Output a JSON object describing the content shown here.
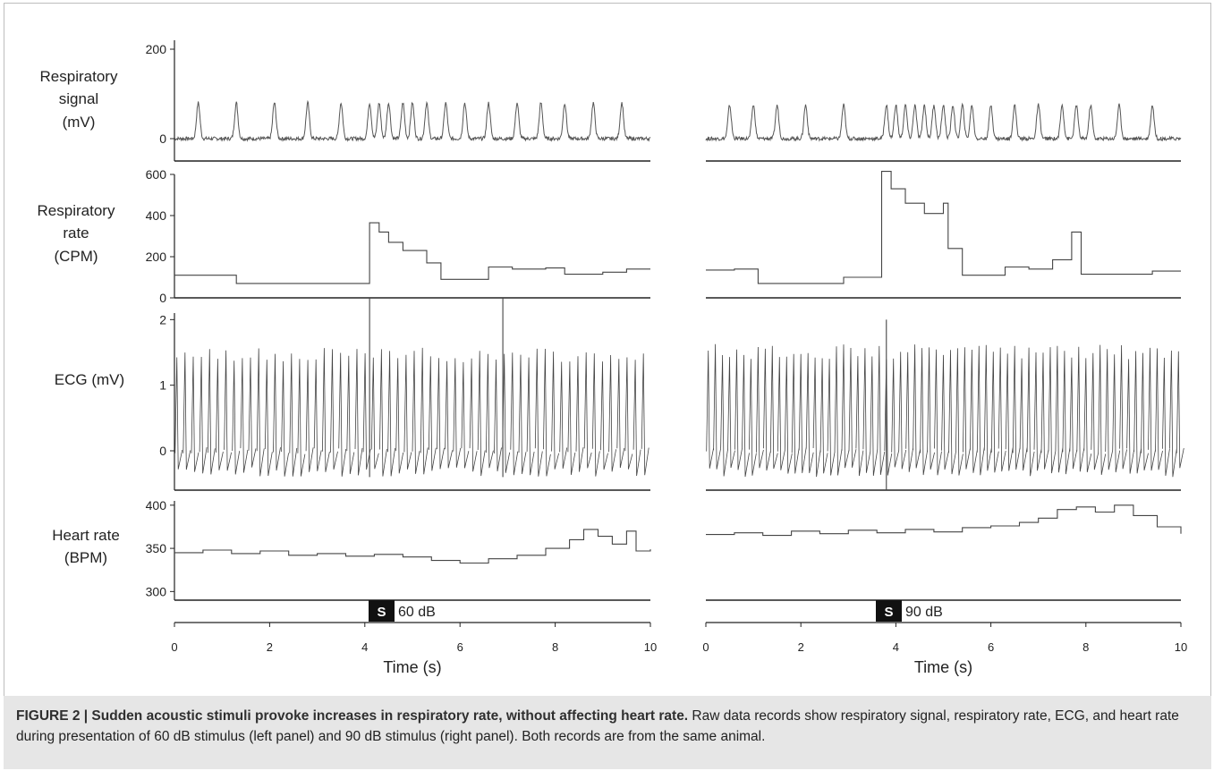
{
  "figure": {
    "caption_title": "FIGURE 2 | Sudden acoustic stimuli provoke increases in respiratory rate, without affecting heart rate.",
    "caption_body": " Raw data records show respiratory signal, respiratory rate, ECG, and heart rate during presentation of 60 dB stimulus (left panel) and 90 dB stimulus (right panel). Both records are from the same animal."
  },
  "row_labels": {
    "resp_signal": [
      "Respiratory",
      "signal",
      "(mV)"
    ],
    "resp_rate": [
      "Respiratory",
      "rate",
      "(CPM)"
    ],
    "ecg": [
      "ECG (mV)"
    ],
    "heart_rate": [
      "Heart rate",
      "(BPM)"
    ]
  },
  "stimulus": {
    "left": {
      "marker": "S",
      "label": "60 dB",
      "time_s": 4.1
    },
    "right": {
      "marker": "S",
      "label": "90 dB",
      "time_s": 3.6
    }
  },
  "chart_data": [
    {
      "type": "line",
      "panel": "left",
      "xlabel": "Time (s)",
      "xlim": [
        0,
        10
      ],
      "x_ticks": [
        "0",
        "2",
        "4",
        "6",
        "8",
        "10"
      ],
      "series": [
        {
          "name": "Respiratory signal",
          "unit": "mV",
          "ylim": [
            -50,
            220
          ],
          "y_ticks": [
            "0",
            "200"
          ],
          "breath_times": [
            0.5,
            1.3,
            2.1,
            2.8,
            3.5,
            4.1,
            4.3,
            4.5,
            4.8,
            5.0,
            5.3,
            5.7,
            6.1,
            6.6,
            7.2,
            7.7,
            8.2,
            8.8,
            9.4
          ],
          "baseline": 0,
          "peak": 80
        },
        {
          "name": "Respiratory rate",
          "unit": "CPM",
          "ylim": [
            0,
            600
          ],
          "y_ticks": [
            "0",
            "200",
            "400",
            "600"
          ],
          "steps": [
            [
              0,
              110
            ],
            [
              0.7,
              110
            ],
            [
              1.3,
              70
            ],
            [
              4.1,
              75
            ],
            [
              4.1,
              365
            ],
            [
              4.3,
              320
            ],
            [
              4.5,
              270
            ],
            [
              4.8,
              230
            ],
            [
              5.3,
              170
            ],
            [
              5.6,
              90
            ],
            [
              6.6,
              150
            ],
            [
              7.1,
              140
            ],
            [
              7.8,
              145
            ],
            [
              8.2,
              115
            ],
            [
              9.0,
              125
            ],
            [
              9.5,
              140
            ],
            [
              10,
              140
            ]
          ]
        },
        {
          "name": "ECG",
          "unit": "mV",
          "ylim": [
            -0.6,
            2.1
          ],
          "y_ticks": [
            "0",
            "1",
            "2"
          ],
          "beat_interval_s": 0.172,
          "r_peak": 1.5,
          "artifacts": [
            4.1,
            6.9
          ]
        },
        {
          "name": "Heart rate",
          "unit": "BPM",
          "ylim": [
            290,
            405
          ],
          "y_ticks": [
            "300",
            "350",
            "400"
          ],
          "steps": [
            [
              0,
              345
            ],
            [
              0.6,
              348
            ],
            [
              1.2,
              344
            ],
            [
              1.8,
              347
            ],
            [
              2.4,
              342
            ],
            [
              3.0,
              344
            ],
            [
              3.6,
              341
            ],
            [
              4.2,
              343
            ],
            [
              4.8,
              340
            ],
            [
              5.4,
              336
            ],
            [
              6.0,
              333
            ],
            [
              6.6,
              338
            ],
            [
              7.2,
              342
            ],
            [
              7.8,
              350
            ],
            [
              8.3,
              360
            ],
            [
              8.6,
              372
            ],
            [
              8.9,
              364
            ],
            [
              9.2,
              355
            ],
            [
              9.5,
              370
            ],
            [
              9.7,
              347
            ],
            [
              10,
              349
            ]
          ]
        }
      ]
    },
    {
      "type": "line",
      "panel": "right",
      "xlabel": "Time (s)",
      "xlim": [
        0,
        10
      ],
      "x_ticks": [
        "0",
        "2",
        "4",
        "6",
        "8",
        "10"
      ],
      "series": [
        {
          "name": "Respiratory signal",
          "unit": "mV",
          "ylim": [
            -50,
            220
          ],
          "y_ticks": [],
          "breath_times": [
            0.5,
            1.0,
            1.5,
            2.1,
            2.9,
            3.8,
            4.0,
            4.2,
            4.4,
            4.6,
            4.8,
            5.0,
            5.2,
            5.4,
            5.6,
            6.0,
            6.5,
            7.0,
            7.5,
            7.8,
            8.1,
            8.7,
            9.4
          ],
          "baseline": 0,
          "peak": 75
        },
        {
          "name": "Respiratory rate",
          "unit": "CPM",
          "ylim": [
            0,
            600
          ],
          "y_ticks": [],
          "steps": [
            [
              0,
              135
            ],
            [
              0.6,
              140
            ],
            [
              1.1,
              70
            ],
            [
              2.9,
              100
            ],
            [
              3.7,
              110
            ],
            [
              3.7,
              615
            ],
            [
              3.9,
              530
            ],
            [
              4.2,
              460
            ],
            [
              4.6,
              410
            ],
            [
              5.0,
              460
            ],
            [
              5.1,
              240
            ],
            [
              5.4,
              110
            ],
            [
              6.3,
              150
            ],
            [
              6.8,
              140
            ],
            [
              7.3,
              185
            ],
            [
              7.7,
              320
            ],
            [
              7.9,
              115
            ],
            [
              8.9,
              115
            ],
            [
              9.4,
              130
            ],
            [
              10,
              130
            ]
          ]
        },
        {
          "name": "ECG",
          "unit": "mV",
          "ylim": [
            -0.6,
            2.1
          ],
          "y_ticks": [],
          "beat_interval_s": 0.15,
          "r_peak": 1.55,
          "artifacts": [
            3.8
          ]
        },
        {
          "name": "Heart rate",
          "unit": "BPM",
          "ylim": [
            290,
            405
          ],
          "y_ticks": [],
          "steps": [
            [
              0,
              366
            ],
            [
              0.6,
              368
            ],
            [
              1.2,
              365
            ],
            [
              1.8,
              370
            ],
            [
              2.4,
              367
            ],
            [
              3.0,
              371
            ],
            [
              3.6,
              368
            ],
            [
              4.2,
              372
            ],
            [
              4.8,
              369
            ],
            [
              5.4,
              374
            ],
            [
              6.0,
              376
            ],
            [
              6.6,
              380
            ],
            [
              7.0,
              385
            ],
            [
              7.4,
              395
            ],
            [
              7.8,
              398
            ],
            [
              8.2,
              392
            ],
            [
              8.6,
              400
            ],
            [
              9.0,
              388
            ],
            [
              9.5,
              375
            ],
            [
              10,
              367
            ]
          ]
        }
      ]
    }
  ]
}
